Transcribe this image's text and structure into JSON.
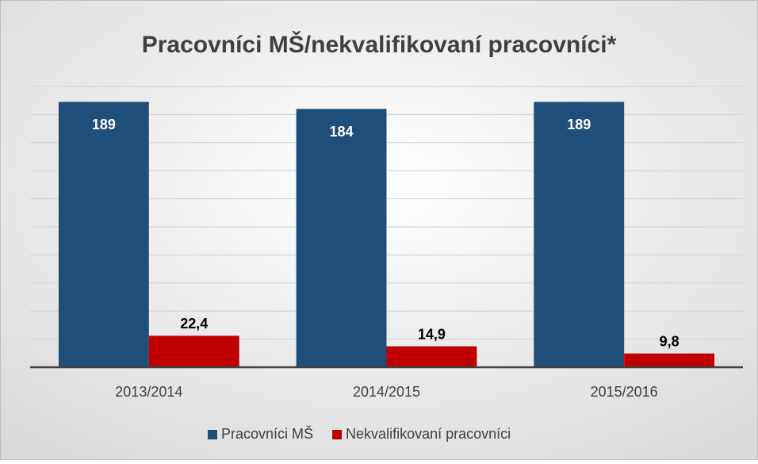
{
  "chart_data": {
    "type": "bar",
    "title": "Pracovníci MŠ/nekvalifikovaní pracovníci*",
    "categories": [
      "2013/2014",
      "2014/2015",
      "2015/2016"
    ],
    "series": [
      {
        "name": "Pracovníci MŠ",
        "color": "#1f4e79",
        "values": [
          189,
          184,
          189
        ]
      },
      {
        "name": "Nekvalifikovaní pracovníci",
        "color": "#c00000",
        "values": [
          22.4,
          14.9,
          9.8
        ],
        "value_labels": [
          "22,4",
          "14,9",
          "9,8"
        ]
      }
    ],
    "ylim": [
      0,
      200
    ],
    "yticks": [
      0,
      20,
      40,
      60,
      80,
      100,
      120,
      140,
      160,
      180,
      200
    ],
    "grid": true,
    "legend": "bottom"
  }
}
